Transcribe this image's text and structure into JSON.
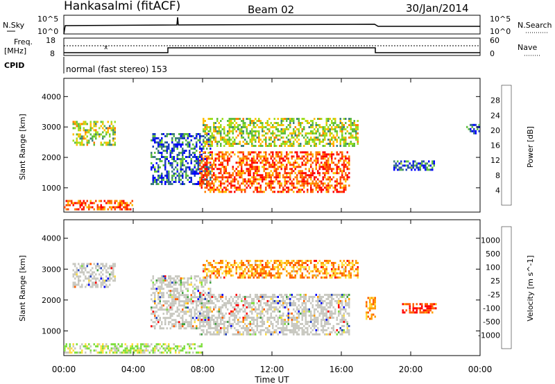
{
  "header": {
    "station": "Hankasalmi (fitACF)",
    "beam": "Beam 02",
    "date": "30/Jan/2014"
  },
  "nsky_panel": {
    "label": "N.Sky",
    "left_ticks": [
      "10^5",
      "10^0"
    ],
    "right_ticks": [
      "10^5",
      "10^0"
    ],
    "right_label": "N.Search"
  },
  "freq_panel": {
    "label_top": "Freq.",
    "label_unit": "[MHz]",
    "left_ticks": [
      "18",
      "8"
    ],
    "right_ticks": [
      "60",
      "0"
    ],
    "right_label": "Nave"
  },
  "cpid": {
    "label": "CPID",
    "text": "normal (fast stereo) 153"
  },
  "chart_data": [
    {
      "type": "heatmap",
      "name": "power-panel",
      "ylabel": "Slant Range [km]",
      "yticks": [
        1000,
        2000,
        3000,
        4000
      ],
      "xlabel": "",
      "ylim": [
        200,
        4600
      ],
      "xlim": [
        0,
        24
      ],
      "colorbar": {
        "label": "Power [dB]",
        "ticks": [
          "28",
          "24",
          "20",
          "16",
          "12",
          "8",
          "4"
        ],
        "colors": [
          "#0000ff",
          "#1f3fbf",
          "#3f7f7f",
          "#5fbf3f",
          "#9fdf1f",
          "#ffbf00",
          "#ff7f00",
          "#ff3f00",
          "#ff0000"
        ]
      },
      "regions": [
        {
          "t": [
            0.5,
            3.0
          ],
          "r": [
            2400,
            3200
          ],
          "level": "medium"
        },
        {
          "t": [
            5.0,
            8.5
          ],
          "r": [
            1100,
            2800
          ],
          "level": "low"
        },
        {
          "t": [
            7.8,
            16.5
          ],
          "r": [
            900,
            2200
          ],
          "level": "high"
        },
        {
          "t": [
            8.0,
            17.0
          ],
          "r": [
            2400,
            3300
          ],
          "level": "medium"
        },
        {
          "t": [
            0.0,
            4.0
          ],
          "r": [
            300,
            600
          ],
          "level": "high"
        },
        {
          "t": [
            19.0,
            21.5
          ],
          "r": [
            1600,
            1900
          ],
          "level": "low"
        },
        {
          "t": [
            23.2,
            24.0
          ],
          "r": [
            2800,
            3100
          ],
          "level": "low"
        }
      ]
    },
    {
      "type": "heatmap",
      "name": "velocity-panel",
      "ylabel": "Slant Range [km]",
      "yticks": [
        1000,
        2000,
        3000,
        4000
      ],
      "xlabel": "Time UT",
      "xticks": [
        "00:00",
        "04:00",
        "08:00",
        "12:00",
        "16:00",
        "20:00",
        "00:00"
      ],
      "ylim": [
        200,
        4600
      ],
      "xlim": [
        0,
        24
      ],
      "colorbar": {
        "label": "Velocity [m s^-1]",
        "ticks": [
          "1000",
          "500",
          "100",
          "25",
          "-25",
          "-100",
          "-500",
          "-1000"
        ],
        "colors": [
          "#0000ff",
          "#1f3fbf",
          "#3f9f3f",
          "#7fdf3f",
          "#bfbfb7",
          "#ffdf3f",
          "#ff9f00",
          "#ff5f00",
          "#ff0000"
        ]
      },
      "regions": [
        {
          "t": [
            0.5,
            3.0
          ],
          "r": [
            2400,
            3200
          ],
          "level": "gray"
        },
        {
          "t": [
            5.0,
            8.5
          ],
          "r": [
            1100,
            2800
          ],
          "level": "gray"
        },
        {
          "t": [
            7.8,
            16.5
          ],
          "r": [
            900,
            2200
          ],
          "level": "gray"
        },
        {
          "t": [
            8.0,
            17.0
          ],
          "r": [
            2700,
            3300
          ],
          "level": "orange"
        },
        {
          "t": [
            17.4,
            18.0
          ],
          "r": [
            1400,
            2100
          ],
          "level": "orange"
        },
        {
          "t": [
            19.5,
            21.5
          ],
          "r": [
            1600,
            1900
          ],
          "level": "red"
        },
        {
          "t": [
            0.0,
            8.0
          ],
          "r": [
            300,
            600
          ],
          "level": "green"
        }
      ]
    }
  ]
}
